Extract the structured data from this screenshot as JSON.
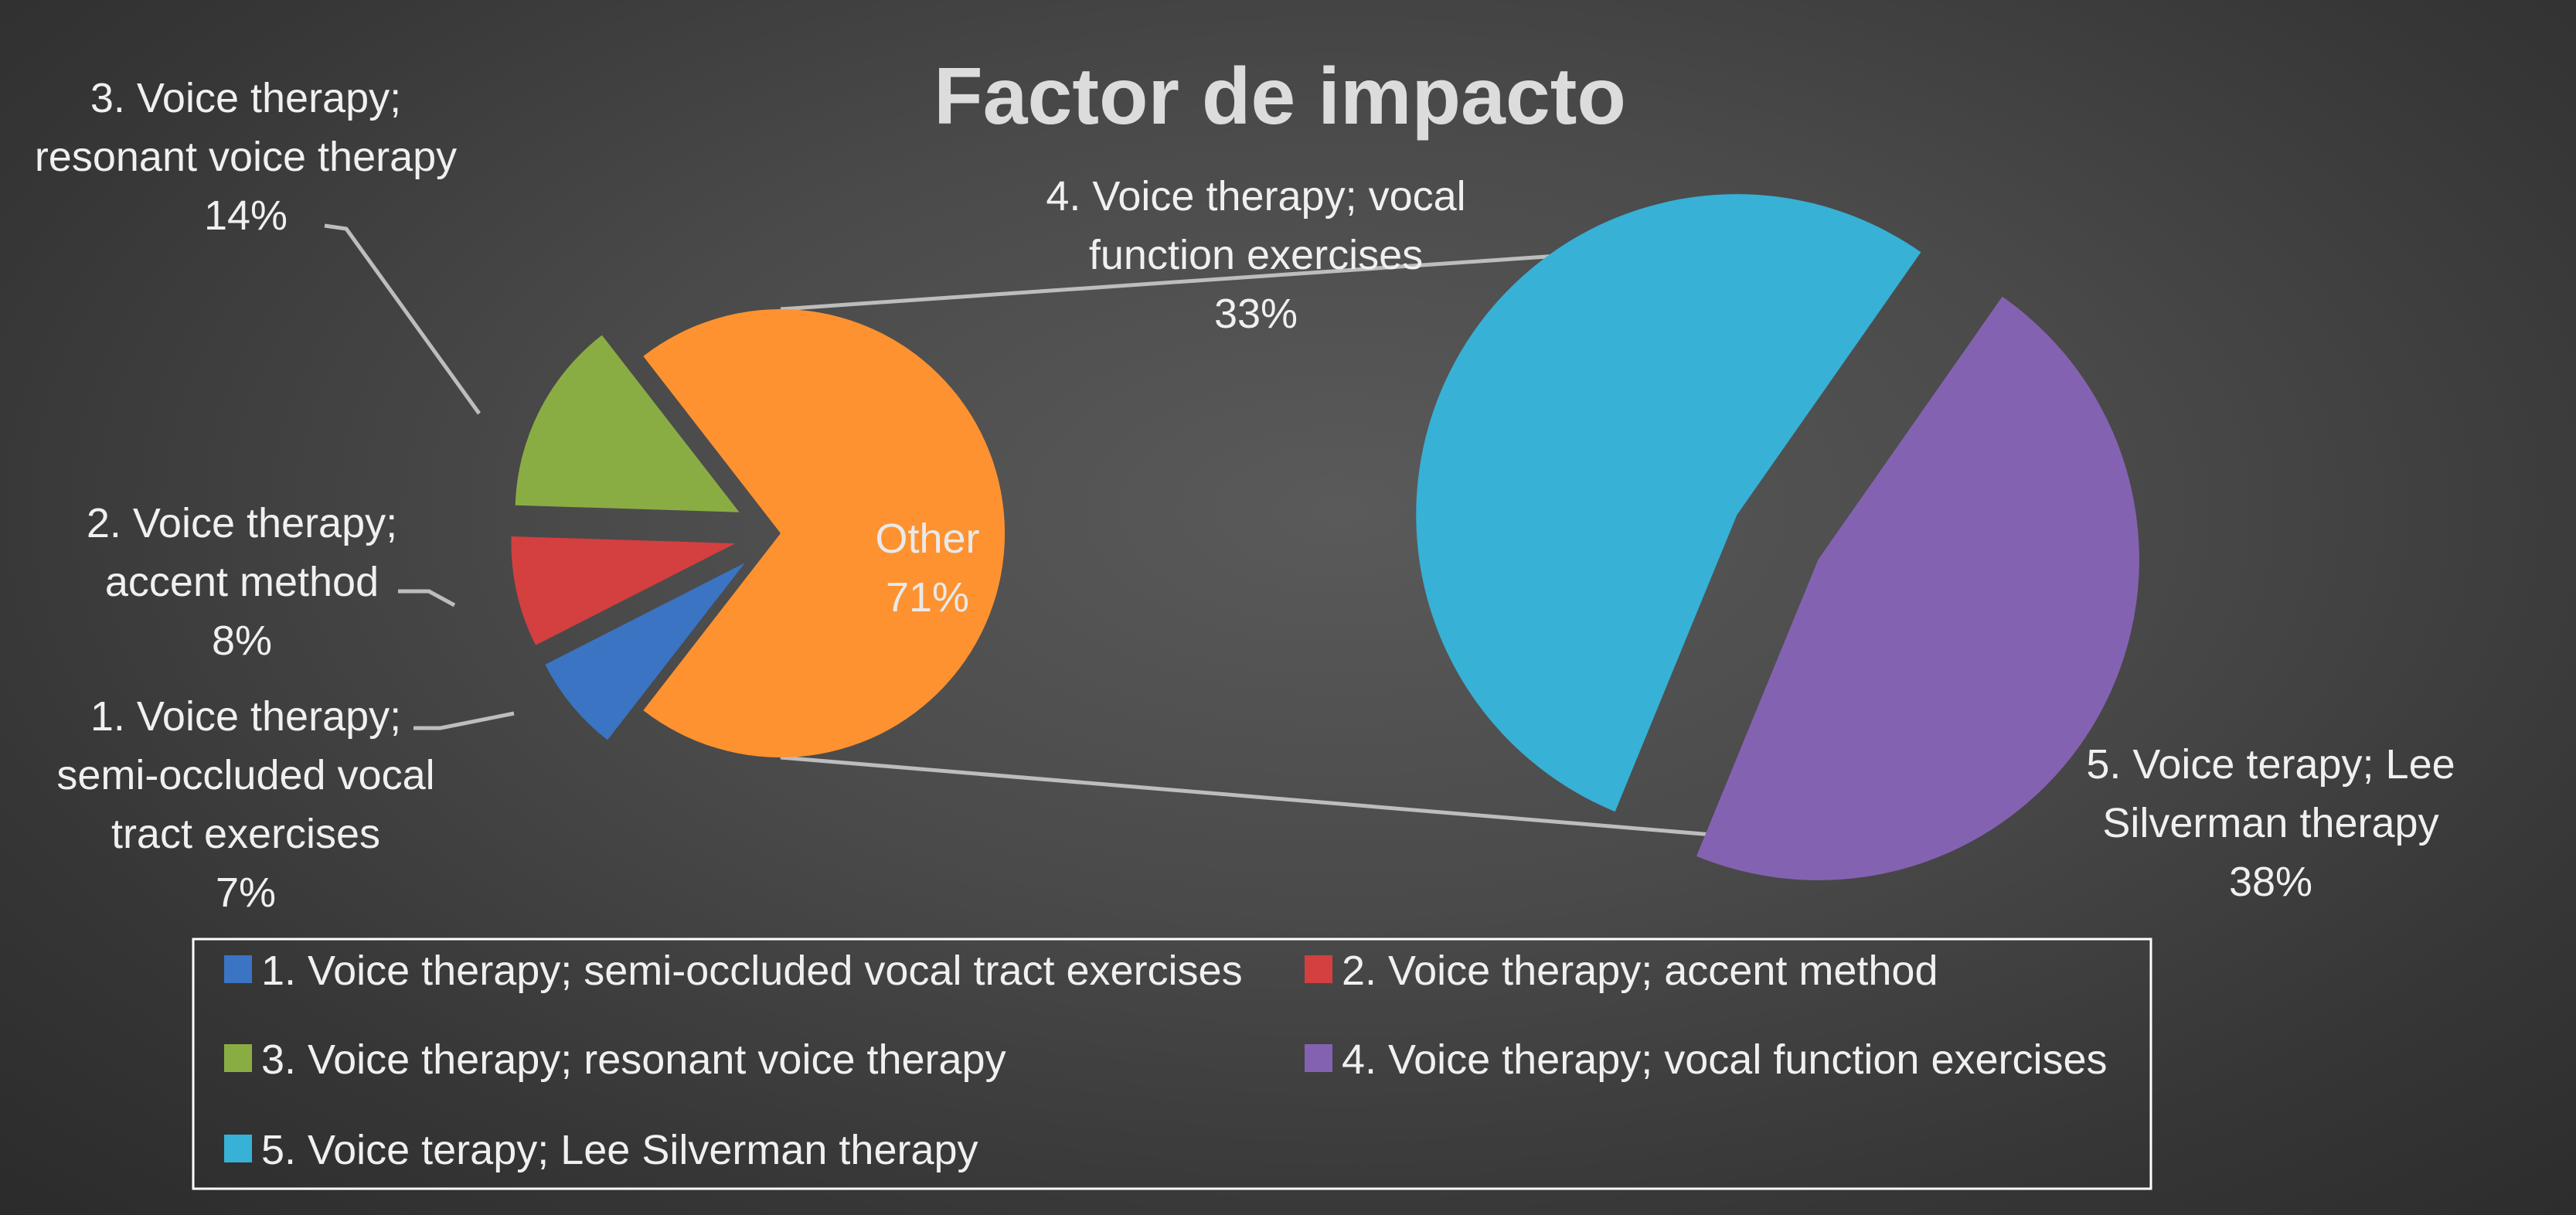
{
  "chart_data": {
    "type": "pie",
    "subtype": "pie-of-pie",
    "title": "Factor de impacto",
    "slices": [
      {
        "label": "1. Voice therapy; semi-occluded vocal tract exercises",
        "value": 7,
        "value_label": "7%",
        "color": "#3b74c3",
        "data_label_lines": [
          "1. Voice therapy;",
          "semi-occluded vocal",
          "tract exercises",
          "7%"
        ]
      },
      {
        "label": "2. Voice therapy; accent method",
        "value": 8,
        "value_label": "8%",
        "color": "#d43f3f",
        "data_label_lines": [
          "2. Voice therapy;",
          "accent method",
          "8%"
        ]
      },
      {
        "label": "3. Voice therapy; resonant voice therapy",
        "value": 14,
        "value_label": "14%",
        "color": "#8aad43",
        "data_label_lines": [
          "3. Voice therapy;",
          "resonant voice therapy",
          "14%"
        ]
      },
      {
        "label": "Other",
        "value": 71,
        "value_label": "71%",
        "color": "#fe9230",
        "data_label_lines": [
          "Other",
          "71%"
        ]
      }
    ],
    "secondary_slices": [
      {
        "label": "4. Voice therapy; vocal function exercises",
        "value": 33,
        "value_label": "33%",
        "color": "#8462b2",
        "data_label_lines": [
          "4. Voice therapy; vocal",
          "function exercises",
          "33%"
        ]
      },
      {
        "label": "5. Voice terapy; Lee Silverman therapy",
        "value": 38,
        "value_label": "38%",
        "color": "#37b1d5",
        "data_label_lines": [
          "5. Voice terapy; Lee",
          "Silverman therapy",
          "38%"
        ]
      }
    ],
    "legend": {
      "position": "bottom",
      "entries": [
        {
          "label": "1. Voice therapy; semi-occluded vocal tract exercises",
          "color": "#3b74c3"
        },
        {
          "label": "2. Voice therapy; accent method",
          "color": "#d43f3f"
        },
        {
          "label": "3. Voice therapy; resonant voice therapy",
          "color": "#8aad43"
        },
        {
          "label": "4. Voice therapy; vocal function exercises",
          "color": "#8462b2"
        },
        {
          "label": "5. Voice terapy; Lee Silverman therapy",
          "color": "#37b1d5"
        }
      ]
    }
  }
}
